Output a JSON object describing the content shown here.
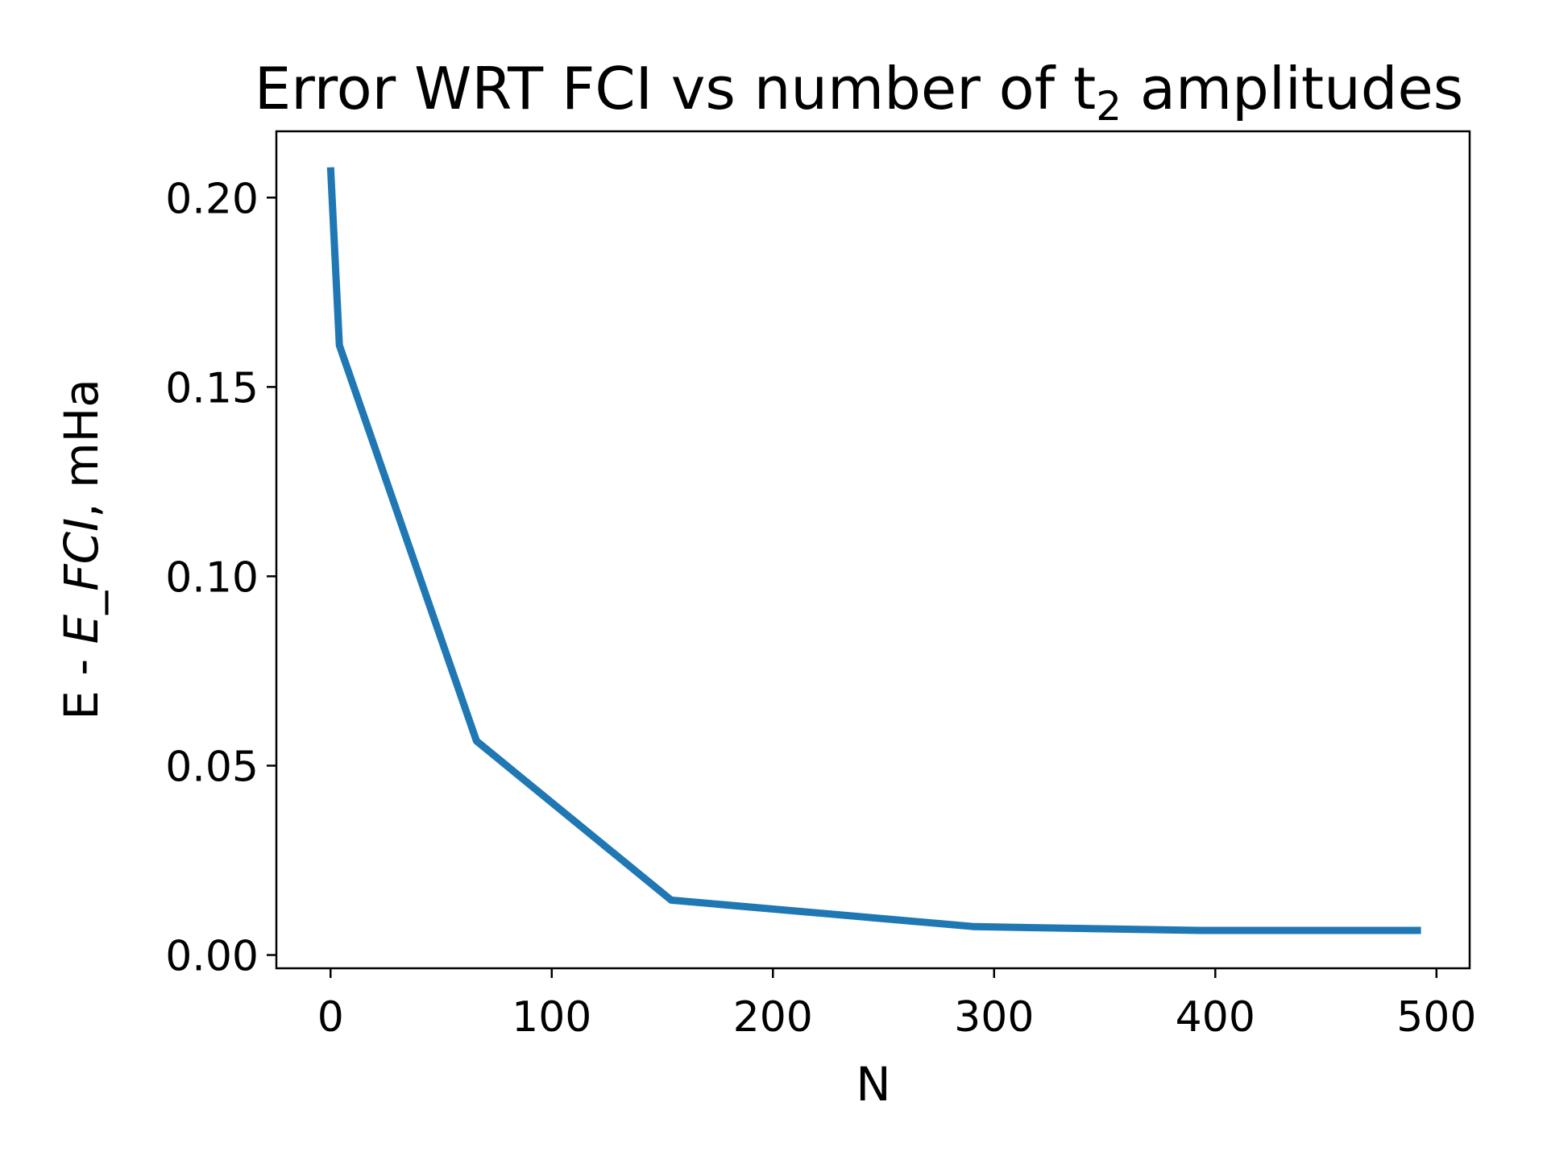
{
  "chart_data": {
    "type": "line",
    "title": "Error WRT FCI vs number of t",
    "title_subscript": "2",
    "title_suffix": " amplitudes",
    "xlabel": "N",
    "ylabel_prefix": "E - ",
    "ylabel_italic": "E_FCI",
    "ylabel_suffix": ", mHa",
    "xlim": [
      -24.5,
      515
    ],
    "ylim": [
      -0.0035,
      0.2175
    ],
    "xticks": [
      0,
      100,
      200,
      300,
      400,
      500
    ],
    "xtick_labels": [
      "0",
      "100",
      "200",
      "300",
      "400",
      "500"
    ],
    "yticks": [
      0.0,
      0.05,
      0.1,
      0.15,
      0.2
    ],
    "ytick_labels": [
      "0.00",
      "0.05",
      "0.10",
      "0.15",
      "0.20"
    ],
    "grid": false,
    "series": [
      {
        "color": "#1f77b4",
        "x": [
          0,
          4,
          66,
          154,
          291,
          393,
          493
        ],
        "y": [
          0.208,
          0.161,
          0.0565,
          0.0145,
          0.0075,
          0.0065,
          0.0065
        ]
      }
    ]
  }
}
